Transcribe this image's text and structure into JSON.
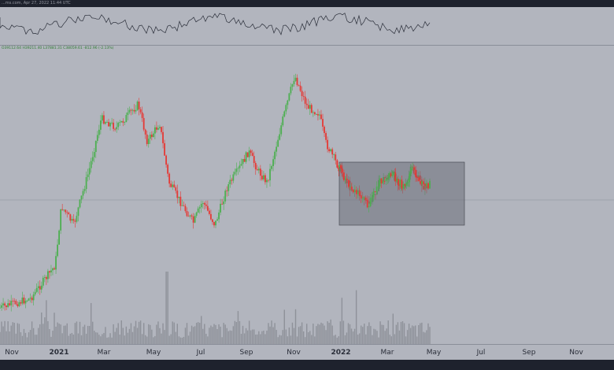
{
  "topbar": {
    "text": "...ms.com, Apr 27, 2022 11:44 UTC"
  },
  "ohlc_text": "O39112.64  H39211.40  L37881.31  C38059.61  -812.96 (-2.13%)",
  "chart_data": {
    "type": "candlestick",
    "title": "",
    "xlabel": "",
    "ylabel": "",
    "x_ticks": [
      {
        "label": "Nov",
        "bold": false
      },
      {
        "label": "2021",
        "bold": true
      },
      {
        "label": "Mar",
        "bold": false
      },
      {
        "label": "May",
        "bold": false
      },
      {
        "label": "Jul",
        "bold": false
      },
      {
        "label": "Sep",
        "bold": false
      },
      {
        "label": "Nov",
        "bold": false
      },
      {
        "label": "2022",
        "bold": true
      },
      {
        "label": "Mar",
        "bold": false
      },
      {
        "label": "May",
        "bold": false
      },
      {
        "label": "Jul",
        "bold": false
      },
      {
        "label": "Sep",
        "bold": false
      },
      {
        "label": "Nov",
        "bold": false
      }
    ],
    "price_path_relative": [
      [
        0,
        0.02
      ],
      [
        0.05,
        0.06
      ],
      [
        0.09,
        0.2
      ],
      [
        0.1,
        0.45
      ],
      [
        0.12,
        0.37
      ],
      [
        0.145,
        0.6
      ],
      [
        0.165,
        0.82
      ],
      [
        0.19,
        0.78
      ],
      [
        0.225,
        0.88
      ],
      [
        0.24,
        0.72
      ],
      [
        0.26,
        0.8
      ],
      [
        0.275,
        0.55
      ],
      [
        0.3,
        0.44
      ],
      [
        0.315,
        0.38
      ],
      [
        0.33,
        0.47
      ],
      [
        0.35,
        0.37
      ],
      [
        0.37,
        0.53
      ],
      [
        0.39,
        0.61
      ],
      [
        0.405,
        0.68
      ],
      [
        0.42,
        0.6
      ],
      [
        0.435,
        0.55
      ],
      [
        0.46,
        0.81
      ],
      [
        0.48,
        1.0
      ],
      [
        0.5,
        0.87
      ],
      [
        0.52,
        0.84
      ],
      [
        0.53,
        0.72
      ],
      [
        0.55,
        0.62
      ],
      [
        0.57,
        0.53
      ],
      [
        0.59,
        0.49
      ],
      [
        0.6,
        0.45
      ],
      [
        0.62,
        0.56
      ],
      [
        0.64,
        0.58
      ],
      [
        0.66,
        0.52
      ],
      [
        0.67,
        0.61
      ],
      [
        0.69,
        0.53
      ],
      [
        0.7,
        0.54
      ]
    ],
    "range_box": {
      "label": "",
      "start_month": "2022-01",
      "end_month": "2022-06"
    },
    "horizontal_line": true,
    "has_volume": true,
    "has_oscillator": true,
    "colors": {
      "up": "#26a69a",
      "down": "#ef5350",
      "up_chart": "#4caf50",
      "down_chart": "#e53935",
      "box": "#6b6e78"
    }
  }
}
